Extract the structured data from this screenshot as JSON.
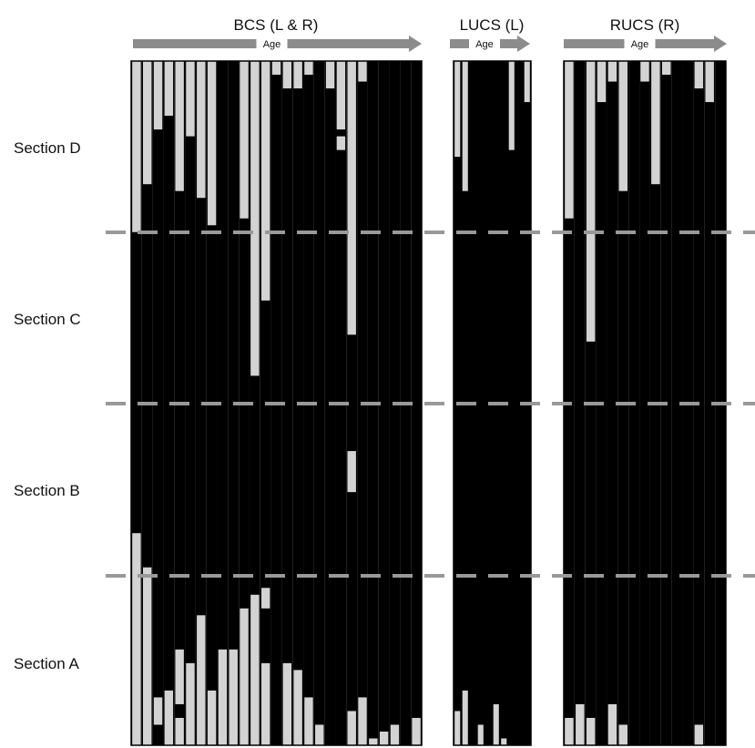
{
  "chart_data": {
    "type": "heatmap",
    "row_labels": [
      "Section D",
      "Section C",
      "Section B",
      "Section A"
    ],
    "arrow_label": "Age",
    "colors": {
      "fused": "#000000",
      "unfused": "#d3d3d3",
      "divider": "#999999",
      "arrow": "#8c8c8c"
    },
    "encoding": "Each column is one specimen; light grey segments are unfused suture, black segments are fused. Column entries list light segments as [from, to] on a 0-1 scale measured top to bottom of the suture.",
    "panels": [
      {
        "title": "BCS (L & R)",
        "columns": [
          [
            [
              0.0,
              0.25
            ],
            [
              0.69,
              1.0
            ]
          ],
          [
            [
              0.0,
              0.18
            ],
            [
              0.74,
              1.0
            ]
          ],
          [
            [
              0.0,
              0.1
            ],
            [
              0.93,
              0.97
            ]
          ],
          [
            [
              0.0,
              0.08
            ],
            [
              0.92,
              1.0
            ]
          ],
          [
            [
              0.0,
              0.19
            ],
            [
              0.86,
              0.94
            ],
            [
              0.96,
              1.0
            ]
          ],
          [
            [
              0.0,
              0.11
            ],
            [
              0.88,
              1.0
            ]
          ],
          [
            [
              0.0,
              0.2
            ],
            [
              0.81,
              1.0
            ]
          ],
          [
            [
              0.0,
              0.24
            ],
            [
              0.92,
              1.0
            ]
          ],
          [
            [
              0.86,
              1.0
            ]
          ],
          [
            [
              0.86,
              1.0
            ]
          ],
          [
            [
              0.0,
              0.23
            ],
            [
              0.8,
              1.0
            ]
          ],
          [
            [
              0.0,
              0.46
            ],
            [
              0.78,
              1.0
            ]
          ],
          [
            [
              0.0,
              0.35
            ],
            [
              0.77,
              0.8
            ],
            [
              0.88,
              1.0
            ]
          ],
          [
            [
              0.0,
              0.02
            ]
          ],
          [
            [
              0.0,
              0.04
            ],
            [
              0.88,
              1.0
            ]
          ],
          [
            [
              0.0,
              0.04
            ],
            [
              0.89,
              1.0
            ]
          ],
          [
            [
              0.0,
              0.02
            ],
            [
              0.93,
              1.0
            ]
          ],
          [
            [
              0.97,
              1.0
            ]
          ],
          [
            [
              0.0,
              0.04
            ]
          ],
          [
            [
              0.0,
              0.1
            ],
            [
              0.11,
              0.13
            ]
          ],
          [
            [
              0.0,
              0.4
            ],
            [
              0.57,
              0.63
            ],
            [
              0.95,
              1.0
            ]
          ],
          [
            [
              0.0,
              0.03
            ],
            [
              0.93,
              1.0
            ]
          ],
          [
            [
              0.99,
              1.0
            ]
          ],
          [
            [
              0.98,
              1.0
            ]
          ],
          [
            [
              0.97,
              1.0
            ]
          ],
          [
            [
              0.0,
              0.0
            ]
          ],
          [
            [
              0.96,
              1.0
            ]
          ]
        ]
      },
      {
        "title": "LUCS (L)",
        "columns": [
          [
            [
              0.0,
              0.14
            ],
            [
              0.95,
              1.0
            ]
          ],
          [
            [
              0.0,
              0.19
            ],
            [
              0.92,
              1.0
            ]
          ],
          [
            [
              0.0,
              0.0
            ]
          ],
          [
            [
              0.97,
              1.0
            ]
          ],
          [
            [
              0.0,
              0.0
            ]
          ],
          [
            [
              0.94,
              1.0
            ]
          ],
          [
            [
              0.99,
              1.0
            ]
          ],
          [
            [
              0.0,
              0.13
            ]
          ],
          [
            [
              0.0,
              0.0
            ]
          ],
          [
            [
              0.0,
              0.06
            ]
          ]
        ]
      },
      {
        "title": "RUCS (R)",
        "columns": [
          [
            [
              0.0,
              0.23
            ],
            [
              0.96,
              1.0
            ]
          ],
          [
            [
              0.94,
              1.0
            ]
          ],
          [
            [
              0.0,
              0.41
            ],
            [
              0.96,
              1.0
            ]
          ],
          [
            [
              0.0,
              0.06
            ]
          ],
          [
            [
              0.0,
              0.03
            ],
            [
              0.94,
              1.0
            ]
          ],
          [
            [
              0.0,
              0.19
            ],
            [
              0.97,
              1.0
            ]
          ],
          [
            [
              0.0,
              0.0
            ]
          ],
          [
            [
              0.0,
              0.03
            ]
          ],
          [
            [
              0.0,
              0.18
            ]
          ],
          [
            [
              0.0,
              0.02
            ]
          ],
          [
            [
              0.0,
              0.0
            ]
          ],
          [
            [
              0.0,
              0.0
            ]
          ],
          [
            [
              0.0,
              0.04
            ],
            [
              0.97,
              1.0
            ]
          ],
          [
            [
              0.0,
              0.06
            ]
          ],
          [
            [
              0.0,
              0.0
            ]
          ]
        ]
      }
    ]
  }
}
